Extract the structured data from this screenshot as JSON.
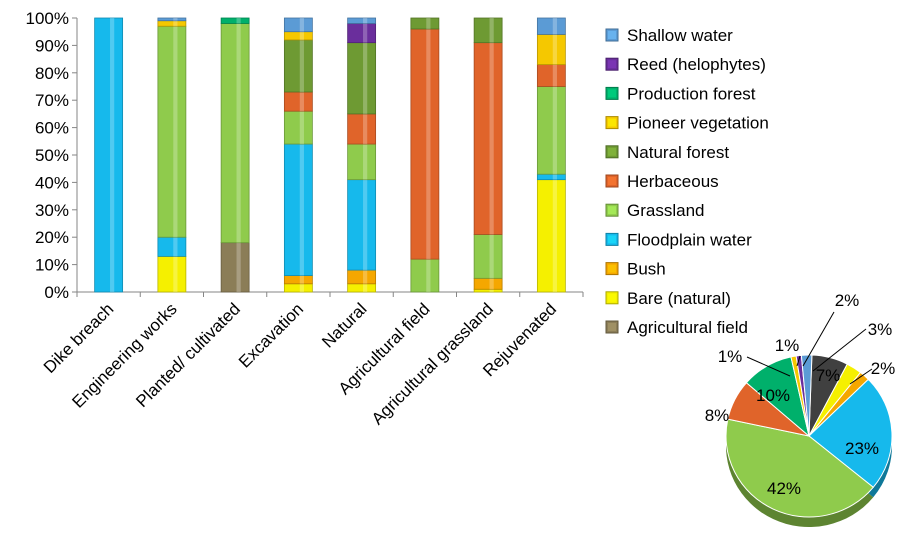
{
  "chart_data": [
    {
      "type": "bar",
      "stacked": true,
      "percent_axis": true,
      "ylim": [
        0,
        100
      ],
      "yticks": [
        "0%",
        "10%",
        "20%",
        "30%",
        "40%",
        "50%",
        "60%",
        "70%",
        "80%",
        "90%",
        "100%"
      ],
      "categories": [
        "Dike breach",
        "Engineering works",
        "Planted/ cultivated",
        "Excavation",
        "Natural",
        "Agricultural field",
        "Agricultural grassland",
        "Rejuvenated"
      ],
      "grid": false,
      "legend_position": "right",
      "series": [
        {
          "name": "Agricultural field",
          "color": "#8B7D57",
          "values": [
            0,
            0,
            18,
            0,
            0,
            0,
            0,
            0
          ]
        },
        {
          "name": "Bare (natural)",
          "color": "#F5F000",
          "values": [
            0,
            13,
            0,
            3,
            3,
            0,
            1,
            41
          ]
        },
        {
          "name": "Bush",
          "color": "#F5A700",
          "values": [
            0,
            0,
            0,
            3,
            5,
            0,
            4,
            0
          ]
        },
        {
          "name": "Floodplain water",
          "color": "#16B9EC",
          "values": [
            100,
            7,
            0,
            48,
            33,
            0,
            0,
            2
          ]
        },
        {
          "name": "Grassland",
          "color": "#8FCB4C",
          "values": [
            0,
            77,
            80,
            12,
            13,
            12,
            16,
            32
          ]
        },
        {
          "name": "Herbaceous",
          "color": "#E0642A",
          "values": [
            0,
            0,
            0,
            7,
            11,
            84,
            70,
            8
          ]
        },
        {
          "name": "Natural forest",
          "color": "#6E9A33",
          "values": [
            0,
            0,
            0,
            19,
            26,
            4,
            9,
            0
          ]
        },
        {
          "name": "Pioneer vegetation",
          "color": "#F5C800",
          "values": [
            0,
            2,
            0,
            3,
            0,
            0,
            0,
            11
          ]
        },
        {
          "name": "Production forest",
          "color": "#00B06B",
          "values": [
            0,
            0,
            2,
            0,
            0,
            0,
            0,
            0
          ]
        },
        {
          "name": "Reed (helophytes)",
          "color": "#6A2E9C",
          "values": [
            0,
            0,
            0,
            0,
            7,
            0,
            0,
            0
          ]
        },
        {
          "name": "Shallow water",
          "color": "#5B9BD5",
          "values": [
            0,
            1,
            0,
            5,
            2,
            0,
            0,
            6
          ]
        }
      ],
      "legend": [
        "Shallow water",
        "Reed (helophytes)",
        "Production forest",
        "Pioneer vegetation",
        "Natural forest",
        "Herbaceous",
        "Grassland",
        "Floodplain water",
        "Bush",
        "Bare (natural)",
        "Agricultural field"
      ]
    },
    {
      "type": "pie",
      "slices": [
        {
          "label": "7%",
          "value": 7,
          "color": "#404040"
        },
        {
          "label": "3%",
          "value": 3,
          "color": "#F5F000"
        },
        {
          "label": "2%",
          "value": 2,
          "color": "#F5A700"
        },
        {
          "label": "23%",
          "value": 23,
          "color": "#16B9EC"
        },
        {
          "label": "42%",
          "value": 42,
          "color": "#8FCB4C"
        },
        {
          "label": "8%",
          "value": 8,
          "color": "#E0642A"
        },
        {
          "label": "10%",
          "value": 10,
          "color": "#00B06B"
        },
        {
          "label": "1%",
          "value": 1,
          "color": "#F5C800"
        },
        {
          "label": "1%",
          "value": 1,
          "color": "#6A2E9C"
        },
        {
          "label": "2%",
          "value": 2,
          "color": "#5B9BD5"
        }
      ]
    }
  ]
}
